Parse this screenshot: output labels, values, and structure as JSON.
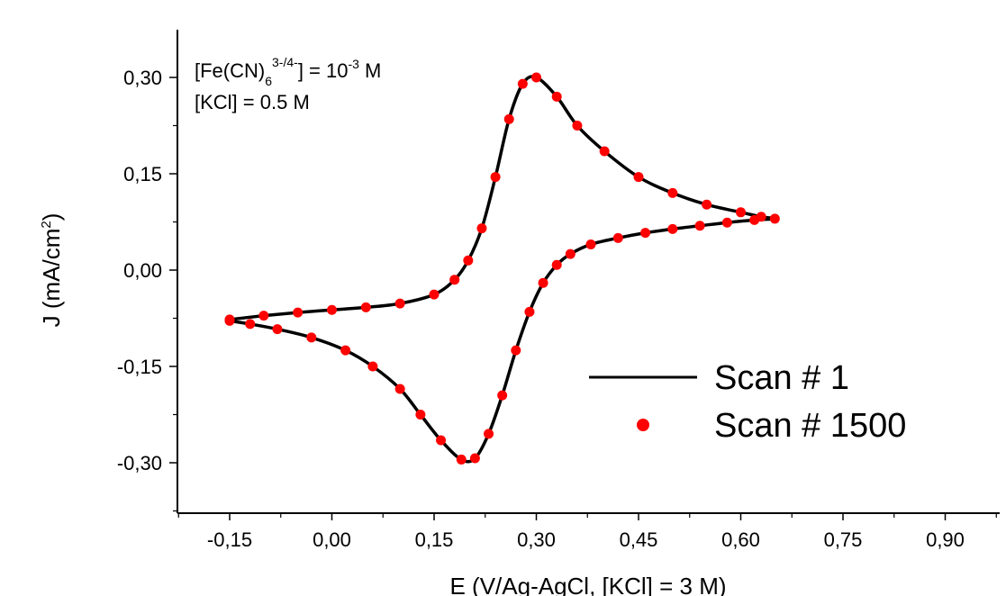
{
  "chart_data": {
    "type": "line",
    "title": "",
    "xlabel": "E (V/Ag-AgCl, [KCl] = 3 M)",
    "ylabel": {
      "main": "J (mA/cm",
      "sup": "2",
      "tail": ")"
    },
    "xlim": [
      -0.2,
      0.95
    ],
    "ylim": [
      -0.38,
      0.38
    ],
    "x_ticks": [
      -0.15,
      0.0,
      0.15,
      0.3,
      0.45,
      0.6,
      0.75,
      0.9
    ],
    "x_tick_labels": [
      "-0,15",
      "0,00",
      "0,15",
      "0,30",
      "0,45",
      "0,60",
      "0,75",
      "0,90"
    ],
    "y_ticks": [
      -0.3,
      -0.15,
      0.0,
      0.15,
      0.3
    ],
    "y_tick_labels": [
      "-0,30",
      "-0,15",
      "0,00",
      "0,15",
      "0,30"
    ],
    "annotations": {
      "line1": {
        "pre": "[Fe(CN)",
        "sub": "6",
        "sup": "3-/4-",
        "mid": "] = 10",
        "exp": "-3",
        "post": " M"
      },
      "line2": "[KCl] = 0.5 M"
    },
    "legend_position": "lower-right",
    "colors": {
      "scan1": "#000000",
      "scan1500": "#ff0000",
      "axis": "#000000"
    },
    "series": [
      {
        "name": "Scan # 1",
        "style": "line",
        "x": [
          -0.15,
          -0.1,
          -0.05,
          0.0,
          0.05,
          0.1,
          0.15,
          0.18,
          0.2,
          0.22,
          0.24,
          0.26,
          0.28,
          0.3,
          0.33,
          0.36,
          0.4,
          0.45,
          0.5,
          0.55,
          0.6,
          0.63,
          0.65,
          0.62,
          0.58,
          0.54,
          0.5,
          0.46,
          0.42,
          0.38,
          0.35,
          0.33,
          0.31,
          0.29,
          0.27,
          0.25,
          0.23,
          0.21,
          0.19,
          0.16,
          0.13,
          0.1,
          0.06,
          0.02,
          -0.03,
          -0.08,
          -0.12,
          -0.15
        ],
        "y": [
          -0.077,
          -0.071,
          -0.066,
          -0.062,
          -0.058,
          -0.052,
          -0.038,
          -0.015,
          0.015,
          0.065,
          0.145,
          0.235,
          0.29,
          0.3,
          0.27,
          0.225,
          0.185,
          0.145,
          0.12,
          0.102,
          0.09,
          0.083,
          0.08,
          0.078,
          0.074,
          0.069,
          0.064,
          0.058,
          0.05,
          0.04,
          0.025,
          0.008,
          -0.02,
          -0.065,
          -0.125,
          -0.195,
          -0.255,
          -0.293,
          -0.295,
          -0.265,
          -0.225,
          -0.185,
          -0.15,
          -0.125,
          -0.105,
          -0.092,
          -0.084,
          -0.079
        ]
      },
      {
        "name": "Scan # 1500",
        "style": "markers",
        "x": [
          -0.15,
          -0.1,
          -0.05,
          0.0,
          0.05,
          0.1,
          0.15,
          0.18,
          0.2,
          0.22,
          0.24,
          0.26,
          0.28,
          0.3,
          0.33,
          0.36,
          0.4,
          0.45,
          0.5,
          0.55,
          0.6,
          0.63,
          0.65,
          0.62,
          0.58,
          0.54,
          0.5,
          0.46,
          0.42,
          0.38,
          0.35,
          0.33,
          0.31,
          0.29,
          0.27,
          0.25,
          0.23,
          0.21,
          0.19,
          0.16,
          0.13,
          0.1,
          0.06,
          0.02,
          -0.03,
          -0.08,
          -0.12,
          -0.15
        ],
        "y": [
          -0.077,
          -0.071,
          -0.066,
          -0.062,
          -0.058,
          -0.052,
          -0.038,
          -0.015,
          0.015,
          0.065,
          0.145,
          0.235,
          0.29,
          0.3,
          0.27,
          0.225,
          0.185,
          0.145,
          0.12,
          0.102,
          0.09,
          0.083,
          0.08,
          0.078,
          0.074,
          0.069,
          0.064,
          0.058,
          0.05,
          0.04,
          0.025,
          0.008,
          -0.02,
          -0.065,
          -0.125,
          -0.195,
          -0.255,
          -0.293,
          -0.295,
          -0.265,
          -0.225,
          -0.185,
          -0.15,
          -0.125,
          -0.105,
          -0.092,
          -0.084,
          -0.079
        ]
      }
    ]
  }
}
